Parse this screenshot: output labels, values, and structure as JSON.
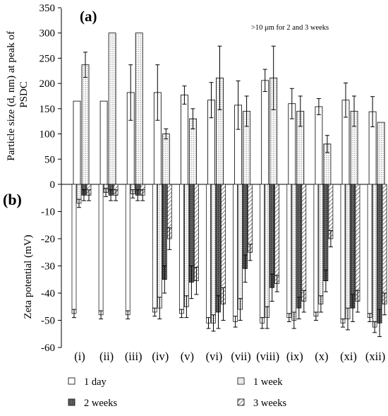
{
  "chart_data": [
    {
      "type": "bar",
      "panel_label": "(a)",
      "title": "",
      "annotation": ">10 μm for 2 and 3 weeks",
      "ylabel": "Particle size (d, nm) at peak of PSDC",
      "ylim": [
        0,
        350
      ],
      "yticks": [
        0,
        50,
        100,
        150,
        200,
        250,
        300,
        350
      ],
      "categories": [
        "(i)",
        "(ii)",
        "(iii)",
        "(iv)",
        "(v)",
        "(vi)",
        "(vii)",
        "(viii)",
        "(ix)",
        "(x)",
        "(xi)",
        "(xii)"
      ],
      "series": [
        {
          "name": "1 day",
          "values": [
            165,
            165,
            182,
            182,
            177,
            167,
            157,
            206,
            160,
            154,
            167,
            144
          ],
          "errors": [
            0,
            0,
            55,
            55,
            18,
            35,
            48,
            22,
            30,
            16,
            34,
            30
          ]
        },
        {
          "name": "1 week",
          "values": [
            237,
            300,
            300,
            100,
            130,
            211,
            145,
            211,
            145,
            80,
            145,
            123
          ],
          "errors": [
            25,
            0,
            0,
            10,
            20,
            63,
            30,
            63,
            30,
            17,
            30,
            0
          ]
        }
      ],
      "grid": false
    },
    {
      "type": "bar",
      "panel_label": "(b)",
      "title": "",
      "ylabel": "Zeta potential (mV)",
      "ylim": [
        -60,
        0
      ],
      "yticks": [
        -60,
        -50,
        -40,
        -30,
        -20,
        -10,
        0
      ],
      "categories": [
        "(i)",
        "(ii)",
        "(iii)",
        "(iv)",
        "(v)",
        "(vi)",
        "(vii)",
        "(viii)",
        "(ix)",
        "(x)",
        "(xi)",
        "(xii)"
      ],
      "series": [
        {
          "name": "1 day",
          "values": [
            -47.5,
            -48,
            -48,
            -47,
            -47.5,
            -51,
            -50.5,
            -51,
            -49,
            -48.5,
            -51,
            -49
          ],
          "errors": [
            1.5,
            1.5,
            1.5,
            1.5,
            1.5,
            2,
            2,
            2,
            1.5,
            1.5,
            1.5,
            1.5
          ]
        },
        {
          "name": "1 week",
          "values": [
            -7,
            -3,
            -3.5,
            -45.5,
            -45,
            -51,
            -46,
            -49,
            -50,
            -44,
            -49.5,
            -52.5
          ],
          "errors": [
            1.5,
            1.5,
            1.5,
            4,
            4,
            3,
            4,
            4,
            3,
            3,
            4,
            2
          ]
        },
        {
          "name": "2 weeks",
          "values": [
            -4,
            -4,
            -4,
            -35,
            -36,
            -47,
            -31,
            -38,
            -45.5,
            -35.5,
            -45.5,
            -51
          ],
          "errors": [
            2,
            2,
            2,
            5,
            6,
            6,
            5,
            5,
            4,
            4,
            5,
            5
          ]
        },
        {
          "name": "3 weeks",
          "values": [
            -4,
            -4,
            -4,
            -20,
            -35.5,
            -44,
            -25,
            -36.5,
            -43,
            -20,
            -43,
            -44
          ],
          "errors": [
            2,
            2,
            2,
            4,
            5,
            6,
            3,
            3,
            4,
            3,
            4,
            4
          ]
        }
      ],
      "grid": false,
      "legend_position": "bottom"
    }
  ],
  "legend": [
    {
      "label": "1 day",
      "pattern": "blank"
    },
    {
      "label": "1 week",
      "pattern": "dots"
    },
    {
      "label": "2 weeks",
      "pattern": "dark"
    },
    {
      "label": "3 weeks",
      "pattern": "hatch"
    }
  ]
}
